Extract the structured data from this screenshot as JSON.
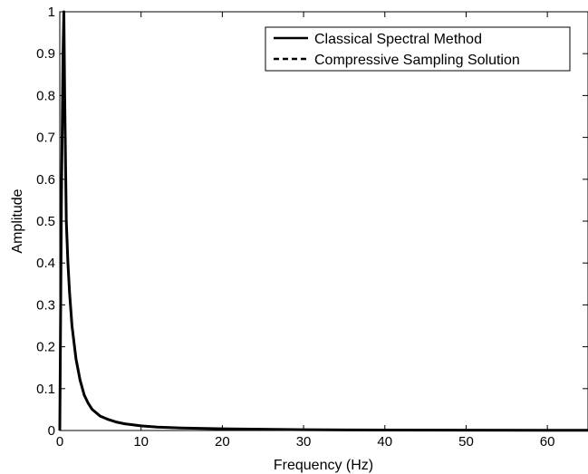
{
  "chart_data": {
    "type": "line",
    "title": "",
    "xlabel": "Frequency (Hz)",
    "ylabel": "Amplitude",
    "xlim": [
      0,
      65
    ],
    "ylim": [
      0,
      1
    ],
    "x_ticks": [
      0,
      10,
      20,
      30,
      40,
      50,
      60
    ],
    "y_ticks": [
      0,
      0.1,
      0.2,
      0.3,
      0.4,
      0.5,
      0.6,
      0.7,
      0.8,
      0.9,
      1
    ],
    "x_tick_labels": [
      "0",
      "10",
      "20",
      "30",
      "40",
      "50",
      "60"
    ],
    "y_tick_labels": [
      "0",
      "0.1",
      "0.2",
      "0.3",
      "0.4",
      "0.5",
      "0.6",
      "0.7",
      "0.8",
      "0.9",
      "1"
    ],
    "grid": false,
    "legend_position": "top-right",
    "x": [
      0,
      0.2,
      0.4,
      0.5,
      0.6,
      0.8,
      1,
      1.2,
      1.5,
      2,
      2.5,
      3,
      3.5,
      4,
      5,
      6,
      7,
      8,
      10,
      12,
      15,
      20,
      25,
      30,
      40,
      50,
      60,
      65
    ],
    "series": [
      {
        "name": "Classical Spectral Method",
        "style": "solid",
        "color": "#000000",
        "values": [
          0,
          0.55,
          0.9,
          1.0,
          0.8,
          0.5,
          0.4,
          0.33,
          0.25,
          0.17,
          0.12,
          0.085,
          0.065,
          0.05,
          0.034,
          0.026,
          0.02,
          0.016,
          0.011,
          0.008,
          0.006,
          0.004,
          0.003,
          0.002,
          0.001,
          0.0008,
          0.0005,
          0.0005
        ]
      },
      {
        "name": "Compressive Sampling Solution",
        "style": "dashed",
        "color": "#000000",
        "values": [
          0,
          0.55,
          0.9,
          1.0,
          0.8,
          0.5,
          0.4,
          0.33,
          0.25,
          0.17,
          0.12,
          0.085,
          0.065,
          0.05,
          0.034,
          0.026,
          0.02,
          0.016,
          0.011,
          0.008,
          0.006,
          0.004,
          0.003,
          0.002,
          0.001,
          0.0008,
          0.0005,
          0.0005
        ]
      }
    ]
  }
}
